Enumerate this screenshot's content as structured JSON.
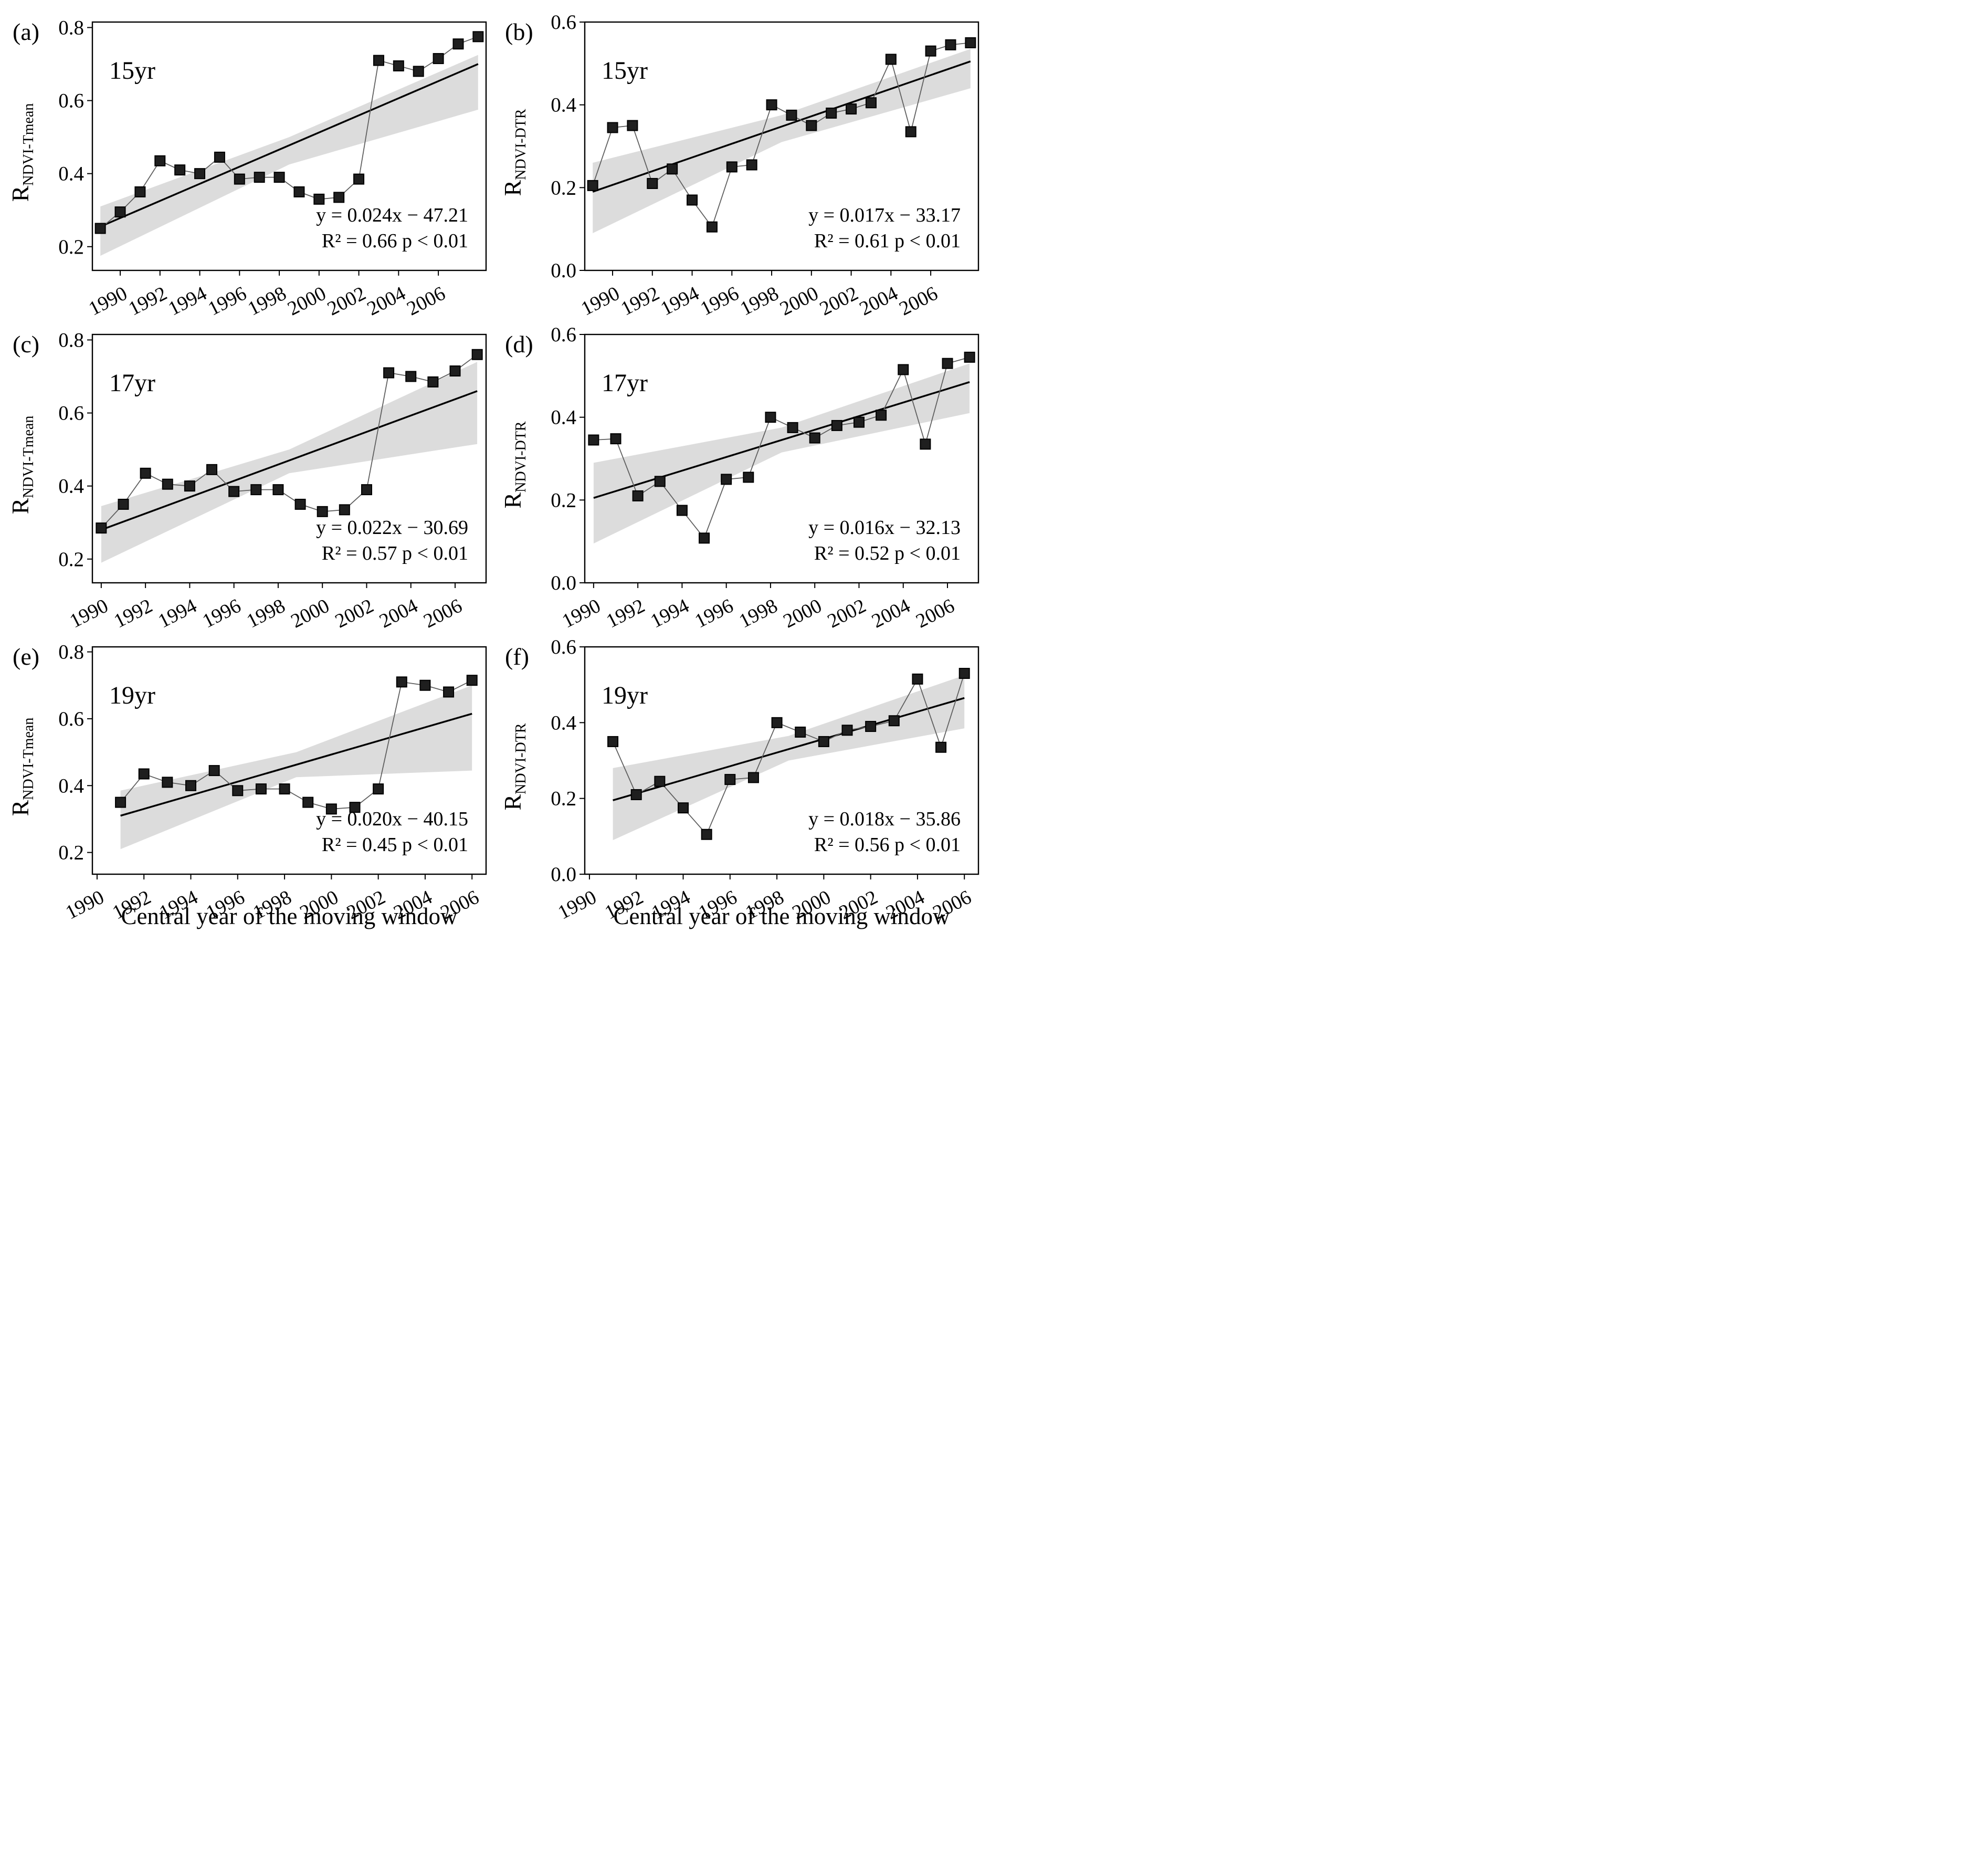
{
  "figure": {
    "xlabel": "Central year of the moving window",
    "colors": {
      "band": "#dcdcdc",
      "trend_line": "#000000",
      "data_line": "#5f5f5f",
      "marker_fill": "#1f1f1f",
      "marker_edge": "#000000",
      "frame": "#000000",
      "text": "#000000"
    }
  },
  "chart_data": [
    {
      "id": "a",
      "type": "line",
      "panel_letter": "(a)",
      "window_label": "15yr",
      "ylabel_base": "R",
      "ylabel_sub": "NDVI-Tmean",
      "equation": "y = 0.024x − 47.21",
      "stats": "R² = 0.66  p < 0.01",
      "xlim": [
        1988.6,
        2008.4
      ],
      "ylim": [
        0.135,
        0.815
      ],
      "xticks": [
        1990,
        1992,
        1994,
        1996,
        1998,
        2000,
        2002,
        2004,
        2006
      ],
      "yticks": [
        0.2,
        0.4,
        0.6,
        0.8
      ],
      "ytick_labels": [
        "0.2",
        "0.4",
        "0.6",
        "0.8"
      ],
      "x": [
        1989,
        1990,
        1991,
        1992,
        1993,
        1994,
        1995,
        1996,
        1997,
        1998,
        1999,
        2000,
        2001,
        2002,
        2003,
        2004,
        2005,
        2006,
        2007,
        2008
      ],
      "y": [
        0.25,
        0.295,
        0.35,
        0.435,
        0.41,
        0.4,
        0.445,
        0.385,
        0.39,
        0.39,
        0.35,
        0.33,
        0.335,
        0.385,
        0.71,
        0.695,
        0.68,
        0.715,
        0.755,
        0.775
      ],
      "trend": {
        "x": [
          1989,
          2008
        ],
        "y": [
          0.255,
          0.7
        ]
      },
      "ci_upper": [
        [
          1989,
          0.31
        ],
        [
          1998.5,
          0.5
        ],
        [
          2008,
          0.725
        ]
      ],
      "ci_lower": [
        [
          1989,
          0.175
        ],
        [
          1998.5,
          0.425
        ],
        [
          2008,
          0.575
        ]
      ],
      "show_xlabel": false
    },
    {
      "id": "b",
      "type": "line",
      "panel_letter": "(b)",
      "window_label": "15yr",
      "ylabel_base": "R",
      "ylabel_sub": "NDVI-DTR",
      "equation": "y = 0.017x − 33.17",
      "stats": "R² = 0.61  p < 0.01",
      "xlim": [
        1988.6,
        2008.4
      ],
      "ylim": [
        0.0,
        0.6
      ],
      "xticks": [
        1990,
        1992,
        1994,
        1996,
        1998,
        2000,
        2002,
        2004,
        2006
      ],
      "yticks": [
        0.0,
        0.2,
        0.4,
        0.6
      ],
      "ytick_labels": [
        "0.0",
        "0.2",
        "0.4",
        "0.6"
      ],
      "x": [
        1989,
        1990,
        1991,
        1992,
        1993,
        1994,
        1995,
        1996,
        1997,
        1998,
        1999,
        2000,
        2001,
        2002,
        2003,
        2004,
        2005,
        2006,
        2007,
        2008
      ],
      "y": [
        0.205,
        0.345,
        0.35,
        0.21,
        0.245,
        0.17,
        0.105,
        0.25,
        0.255,
        0.4,
        0.375,
        0.35,
        0.38,
        0.39,
        0.405,
        0.51,
        0.335,
        0.53,
        0.545,
        0.55
      ],
      "trend": {
        "x": [
          1989,
          2008
        ],
        "y": [
          0.19,
          0.505
        ]
      },
      "ci_upper": [
        [
          1989,
          0.26
        ],
        [
          1998.5,
          0.375
        ],
        [
          2008,
          0.535
        ]
      ],
      "ci_lower": [
        [
          1989,
          0.09
        ],
        [
          1998.5,
          0.31
        ],
        [
          2008,
          0.44
        ]
      ],
      "show_xlabel": false
    },
    {
      "id": "c",
      "type": "line",
      "panel_letter": "(c)",
      "window_label": "17yr",
      "ylabel_base": "R",
      "ylabel_sub": "NDVI-Tmean",
      "equation": "y = 0.022x − 30.69",
      "stats": "R² = 0.57  p < 0.01",
      "xlim": [
        1989.6,
        2007.4
      ],
      "ylim": [
        0.135,
        0.815
      ],
      "xticks": [
        1990,
        1992,
        1994,
        1996,
        1998,
        2000,
        2002,
        2004,
        2006
      ],
      "yticks": [
        0.2,
        0.4,
        0.6,
        0.8
      ],
      "ytick_labels": [
        "0.2",
        "0.4",
        "0.6",
        "0.8"
      ],
      "x": [
        1990,
        1991,
        1992,
        1993,
        1994,
        1995,
        1996,
        1997,
        1998,
        1999,
        2000,
        2001,
        2002,
        2003,
        2004,
        2005,
        2006,
        2007
      ],
      "y": [
        0.285,
        0.35,
        0.435,
        0.405,
        0.4,
        0.445,
        0.385,
        0.39,
        0.39,
        0.35,
        0.33,
        0.335,
        0.39,
        0.71,
        0.7,
        0.685,
        0.715,
        0.76
      ],
      "trend": {
        "x": [
          1990,
          2007
        ],
        "y": [
          0.28,
          0.66
        ]
      },
      "ci_upper": [
        [
          1990,
          0.345
        ],
        [
          1998.5,
          0.5
        ],
        [
          2007,
          0.74
        ]
      ],
      "ci_lower": [
        [
          1990,
          0.19
        ],
        [
          1998.5,
          0.435
        ],
        [
          2007,
          0.515
        ]
      ],
      "show_xlabel": false
    },
    {
      "id": "d",
      "type": "line",
      "panel_letter": "(d)",
      "window_label": "17yr",
      "ylabel_base": "R",
      "ylabel_sub": "NDVI-DTR",
      "equation": "y = 0.016x − 32.13",
      "stats": "R² = 0.52  p < 0.01",
      "xlim": [
        1989.6,
        2007.4
      ],
      "ylim": [
        0.0,
        0.6
      ],
      "xticks": [
        1990,
        1992,
        1994,
        1996,
        1998,
        2000,
        2002,
        2004,
        2006
      ],
      "yticks": [
        0.0,
        0.2,
        0.4,
        0.6
      ],
      "ytick_labels": [
        "0.0",
        "0.2",
        "0.4",
        "0.6"
      ],
      "x": [
        1990,
        1991,
        1992,
        1993,
        1994,
        1995,
        1996,
        1997,
        1998,
        1999,
        2000,
        2001,
        2002,
        2003,
        2004,
        2005,
        2006,
        2007
      ],
      "y": [
        0.345,
        0.348,
        0.21,
        0.245,
        0.175,
        0.108,
        0.25,
        0.255,
        0.4,
        0.375,
        0.35,
        0.38,
        0.388,
        0.405,
        0.515,
        0.335,
        0.53,
        0.545
      ],
      "trend": {
        "x": [
          1990,
          2007
        ],
        "y": [
          0.205,
          0.485
        ]
      },
      "ci_upper": [
        [
          1990,
          0.29
        ],
        [
          1998.5,
          0.375
        ],
        [
          2007,
          0.53
        ]
      ],
      "ci_lower": [
        [
          1990,
          0.095
        ],
        [
          1998.5,
          0.315
        ],
        [
          2007,
          0.41
        ]
      ],
      "show_xlabel": false
    },
    {
      "id": "e",
      "type": "line",
      "panel_letter": "(e)",
      "window_label": "19yr",
      "ylabel_base": "R",
      "ylabel_sub": "NDVI-Tmean",
      "equation": "y = 0.020x − 40.15",
      "stats": "R² = 0.45  p < 0.01",
      "xlim": [
        1989.8,
        2006.6
      ],
      "ylim": [
        0.135,
        0.815
      ],
      "xticks": [
        1990,
        1992,
        1994,
        1996,
        1998,
        2000,
        2002,
        2004,
        2006
      ],
      "yticks": [
        0.2,
        0.4,
        0.6,
        0.8
      ],
      "ytick_labels": [
        "0.2",
        "0.4",
        "0.6",
        "0.8"
      ],
      "x": [
        1991,
        1992,
        1993,
        1994,
        1995,
        1996,
        1997,
        1998,
        1999,
        2000,
        2001,
        2002,
        2003,
        2004,
        2005,
        2006
      ],
      "y": [
        0.35,
        0.435,
        0.41,
        0.4,
        0.445,
        0.385,
        0.39,
        0.39,
        0.35,
        0.33,
        0.335,
        0.39,
        0.71,
        0.7,
        0.68,
        0.715
      ],
      "trend": {
        "x": [
          1991,
          2006
        ],
        "y": [
          0.31,
          0.615
        ]
      },
      "ci_upper": [
        [
          1991,
          0.385
        ],
        [
          1998.5,
          0.5
        ],
        [
          2006,
          0.7
        ]
      ],
      "ci_lower": [
        [
          1991,
          0.21
        ],
        [
          1998.5,
          0.425
        ],
        [
          2006,
          0.445
        ]
      ],
      "show_xlabel": true
    },
    {
      "id": "f",
      "type": "line",
      "panel_letter": "(f)",
      "window_label": "19yr",
      "ylabel_base": "R",
      "ylabel_sub": "NDVI-DTR",
      "equation": "y = 0.018x − 35.86",
      "stats": "R² = 0.56  p < 0.01",
      "xlim": [
        1989.8,
        2006.6
      ],
      "ylim": [
        0.0,
        0.6
      ],
      "xticks": [
        1990,
        1992,
        1994,
        1996,
        1998,
        2000,
        2002,
        2004,
        2006
      ],
      "yticks": [
        0.0,
        0.2,
        0.4,
        0.6
      ],
      "ytick_labels": [
        "0.0",
        "0.2",
        "0.4",
        "0.6"
      ],
      "x": [
        1991,
        1992,
        1993,
        1994,
        1995,
        1996,
        1997,
        1998,
        1999,
        2000,
        2001,
        2002,
        2003,
        2004,
        2005,
        2006
      ],
      "y": [
        0.35,
        0.21,
        0.245,
        0.175,
        0.105,
        0.25,
        0.255,
        0.4,
        0.375,
        0.35,
        0.38,
        0.39,
        0.405,
        0.515,
        0.335,
        0.53
      ],
      "trend": {
        "x": [
          1991,
          2006
        ],
        "y": [
          0.195,
          0.465
        ]
      },
      "ci_upper": [
        [
          1991,
          0.28
        ],
        [
          1998.5,
          0.365
        ],
        [
          2006,
          0.525
        ]
      ],
      "ci_lower": [
        [
          1991,
          0.09
        ],
        [
          1998.5,
          0.3
        ],
        [
          2006,
          0.385
        ]
      ],
      "show_xlabel": true
    }
  ]
}
